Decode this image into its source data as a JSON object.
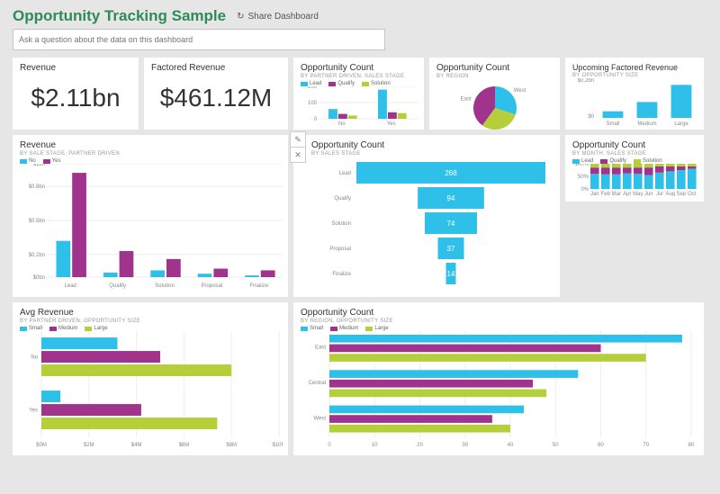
{
  "header": {
    "title": "Opportunity Tracking Sample",
    "share_label": "Share Dashboard",
    "title_color": "#2e8b57"
  },
  "qa": {
    "placeholder": "Ask a question about the data on this dashboard"
  },
  "colors": {
    "blue": "#2ec0e8",
    "purple": "#a0338c",
    "green": "#b5cf3a",
    "grid": "#eeeeee",
    "text": "#888888"
  },
  "card_revenue": {
    "title": "Revenue",
    "value": "$2.11bn"
  },
  "card_factored": {
    "title": "Factored Revenue",
    "value": "$461.12M"
  },
  "chart_opp_small": {
    "title": "Opportunity Count",
    "subtitle": "BY PARTNER DRIVEN, SALES STAGE",
    "legend": [
      "Lead",
      "Qualify",
      "Solution"
    ],
    "legend_colors": [
      "#2ec0e8",
      "#a0338c",
      "#b5cf3a"
    ],
    "categories": [
      "No",
      "Yes"
    ],
    "series": [
      [
        60,
        180
      ],
      [
        30,
        40
      ],
      [
        20,
        35
      ]
    ],
    "ylim": 200,
    "yticks": [
      0,
      100,
      200
    ]
  },
  "chart_pie": {
    "title": "Opportunity Count",
    "subtitle": "BY REGION",
    "labels": [
      "West",
      "Central",
      "East"
    ],
    "values": [
      30,
      30,
      40
    ],
    "colors": [
      "#2ec0e8",
      "#b5cf3a",
      "#a0338c"
    ]
  },
  "chart_upcoming": {
    "title": "Upcoming Factored Revenue",
    "subtitle": "BY OPPORTUNITY SIZE",
    "categories": [
      "Small",
      "Medium",
      "Large"
    ],
    "values": [
      0.05,
      0.12,
      0.25
    ],
    "ylim": 0.3,
    "yticks": [
      "$0",
      "$0.2bn"
    ],
    "color": "#2ec0e8"
  },
  "chart_revenue": {
    "title": "Revenue",
    "subtitle": "BY SALE STAGE, PARTNER DRIVEN",
    "legend": [
      "No",
      "Yes"
    ],
    "legend_colors": [
      "#2ec0e8",
      "#a0338c"
    ],
    "categories": [
      "Lead",
      "Qualify",
      "Solution",
      "Proposal",
      "Finalize"
    ],
    "series_no": [
      0.32,
      0.04,
      0.06,
      0.03,
      0.015
    ],
    "series_yes": [
      0.92,
      0.23,
      0.16,
      0.075,
      0.06
    ],
    "ylim": 1.0,
    "yticks": [
      "$0bn",
      "$0.2bn",
      "$0.5bn",
      "$0.8bn",
      "$1bn"
    ]
  },
  "chart_funnel": {
    "title": "Opportunity Count",
    "subtitle": "BY SALES STAGE",
    "labels": [
      "Lead",
      "Qualify",
      "Solution",
      "Proposal",
      "Finalize"
    ],
    "values": [
      268,
      94,
      74,
      37,
      14
    ],
    "max": 268,
    "color": "#2ec0e8"
  },
  "chart_stacked": {
    "title": "Opportunity Count",
    "subtitle": "BY MONTH, SALES STAGE",
    "legend": [
      "Lead",
      "Qualify",
      "Solution"
    ],
    "legend_colors": [
      "#2ec0e8",
      "#a0338c",
      "#b5cf3a"
    ],
    "categories": [
      "Jan",
      "Feb",
      "Mar",
      "Apr",
      "May",
      "Jun",
      "Jul",
      "Aug",
      "Sep",
      "Oct"
    ],
    "lead": [
      60,
      58,
      58,
      62,
      60,
      55,
      65,
      70,
      75,
      80
    ],
    "qualify": [
      25,
      27,
      27,
      23,
      25,
      30,
      25,
      20,
      15,
      10
    ],
    "solution": [
      15,
      15,
      15,
      15,
      15,
      15,
      10,
      10,
      10,
      10
    ],
    "yticks": [
      "0%",
      "50%",
      "100%"
    ]
  },
  "chart_avg": {
    "title": "Avg Revenue",
    "subtitle": "BY PARTNER DRIVEN, OPPORTUNITY SIZE",
    "legend": [
      "Small",
      "Medium",
      "Large"
    ],
    "legend_colors": [
      "#2ec0e8",
      "#a0338c",
      "#b5cf3a"
    ],
    "groups": [
      "No",
      "Yes"
    ],
    "small": [
      3.2,
      0.8
    ],
    "medium": [
      5.0,
      4.2
    ],
    "large": [
      8.0,
      7.4
    ],
    "xlim": 10,
    "xticks": [
      "$0M",
      "$2M",
      "$4M",
      "$6M",
      "$8M",
      "$10M"
    ]
  },
  "chart_region": {
    "title": "Opportunity Count",
    "subtitle": "BY REGION, OPPORTUNITY SIZE",
    "legend": [
      "Small",
      "Medium",
      "Large"
    ],
    "legend_colors": [
      "#2ec0e8",
      "#a0338c",
      "#b5cf3a"
    ],
    "groups": [
      "East",
      "Central",
      "West"
    ],
    "small": [
      78,
      55,
      43
    ],
    "medium": [
      60,
      45,
      36
    ],
    "large": [
      70,
      48,
      40
    ],
    "xlim": 80,
    "xticks": [
      "0",
      "10",
      "20",
      "30",
      "40",
      "50",
      "60",
      "70",
      "80"
    ]
  }
}
